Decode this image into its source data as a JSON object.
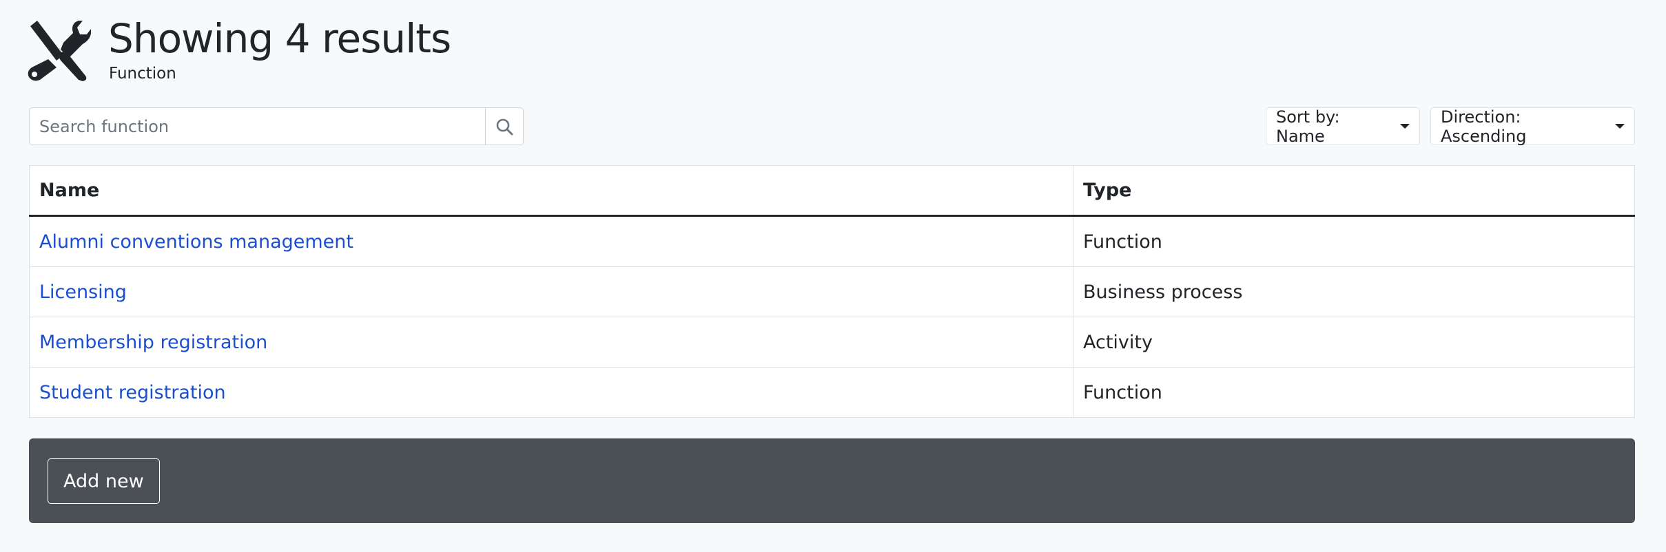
{
  "header": {
    "title": "Showing 4 results",
    "subtitle": "Function",
    "icon": "tools-icon"
  },
  "search": {
    "placeholder": "Search function",
    "value": "",
    "icon": "search-icon"
  },
  "sort": {
    "label": "Sort by: Name"
  },
  "direction": {
    "label": "Direction: Ascending"
  },
  "table": {
    "columns": [
      "Name",
      "Type"
    ],
    "rows": [
      {
        "name": "Alumni conventions management",
        "type": "Function"
      },
      {
        "name": "Licensing",
        "type": "Business process"
      },
      {
        "name": "Membership registration",
        "type": "Activity"
      },
      {
        "name": "Student registration",
        "type": "Function"
      }
    ]
  },
  "footer": {
    "add_label": "Add new"
  },
  "colors": {
    "link": "#1a4fd1",
    "footer_bg": "#4b4f56",
    "background": "#f8f9fa"
  }
}
